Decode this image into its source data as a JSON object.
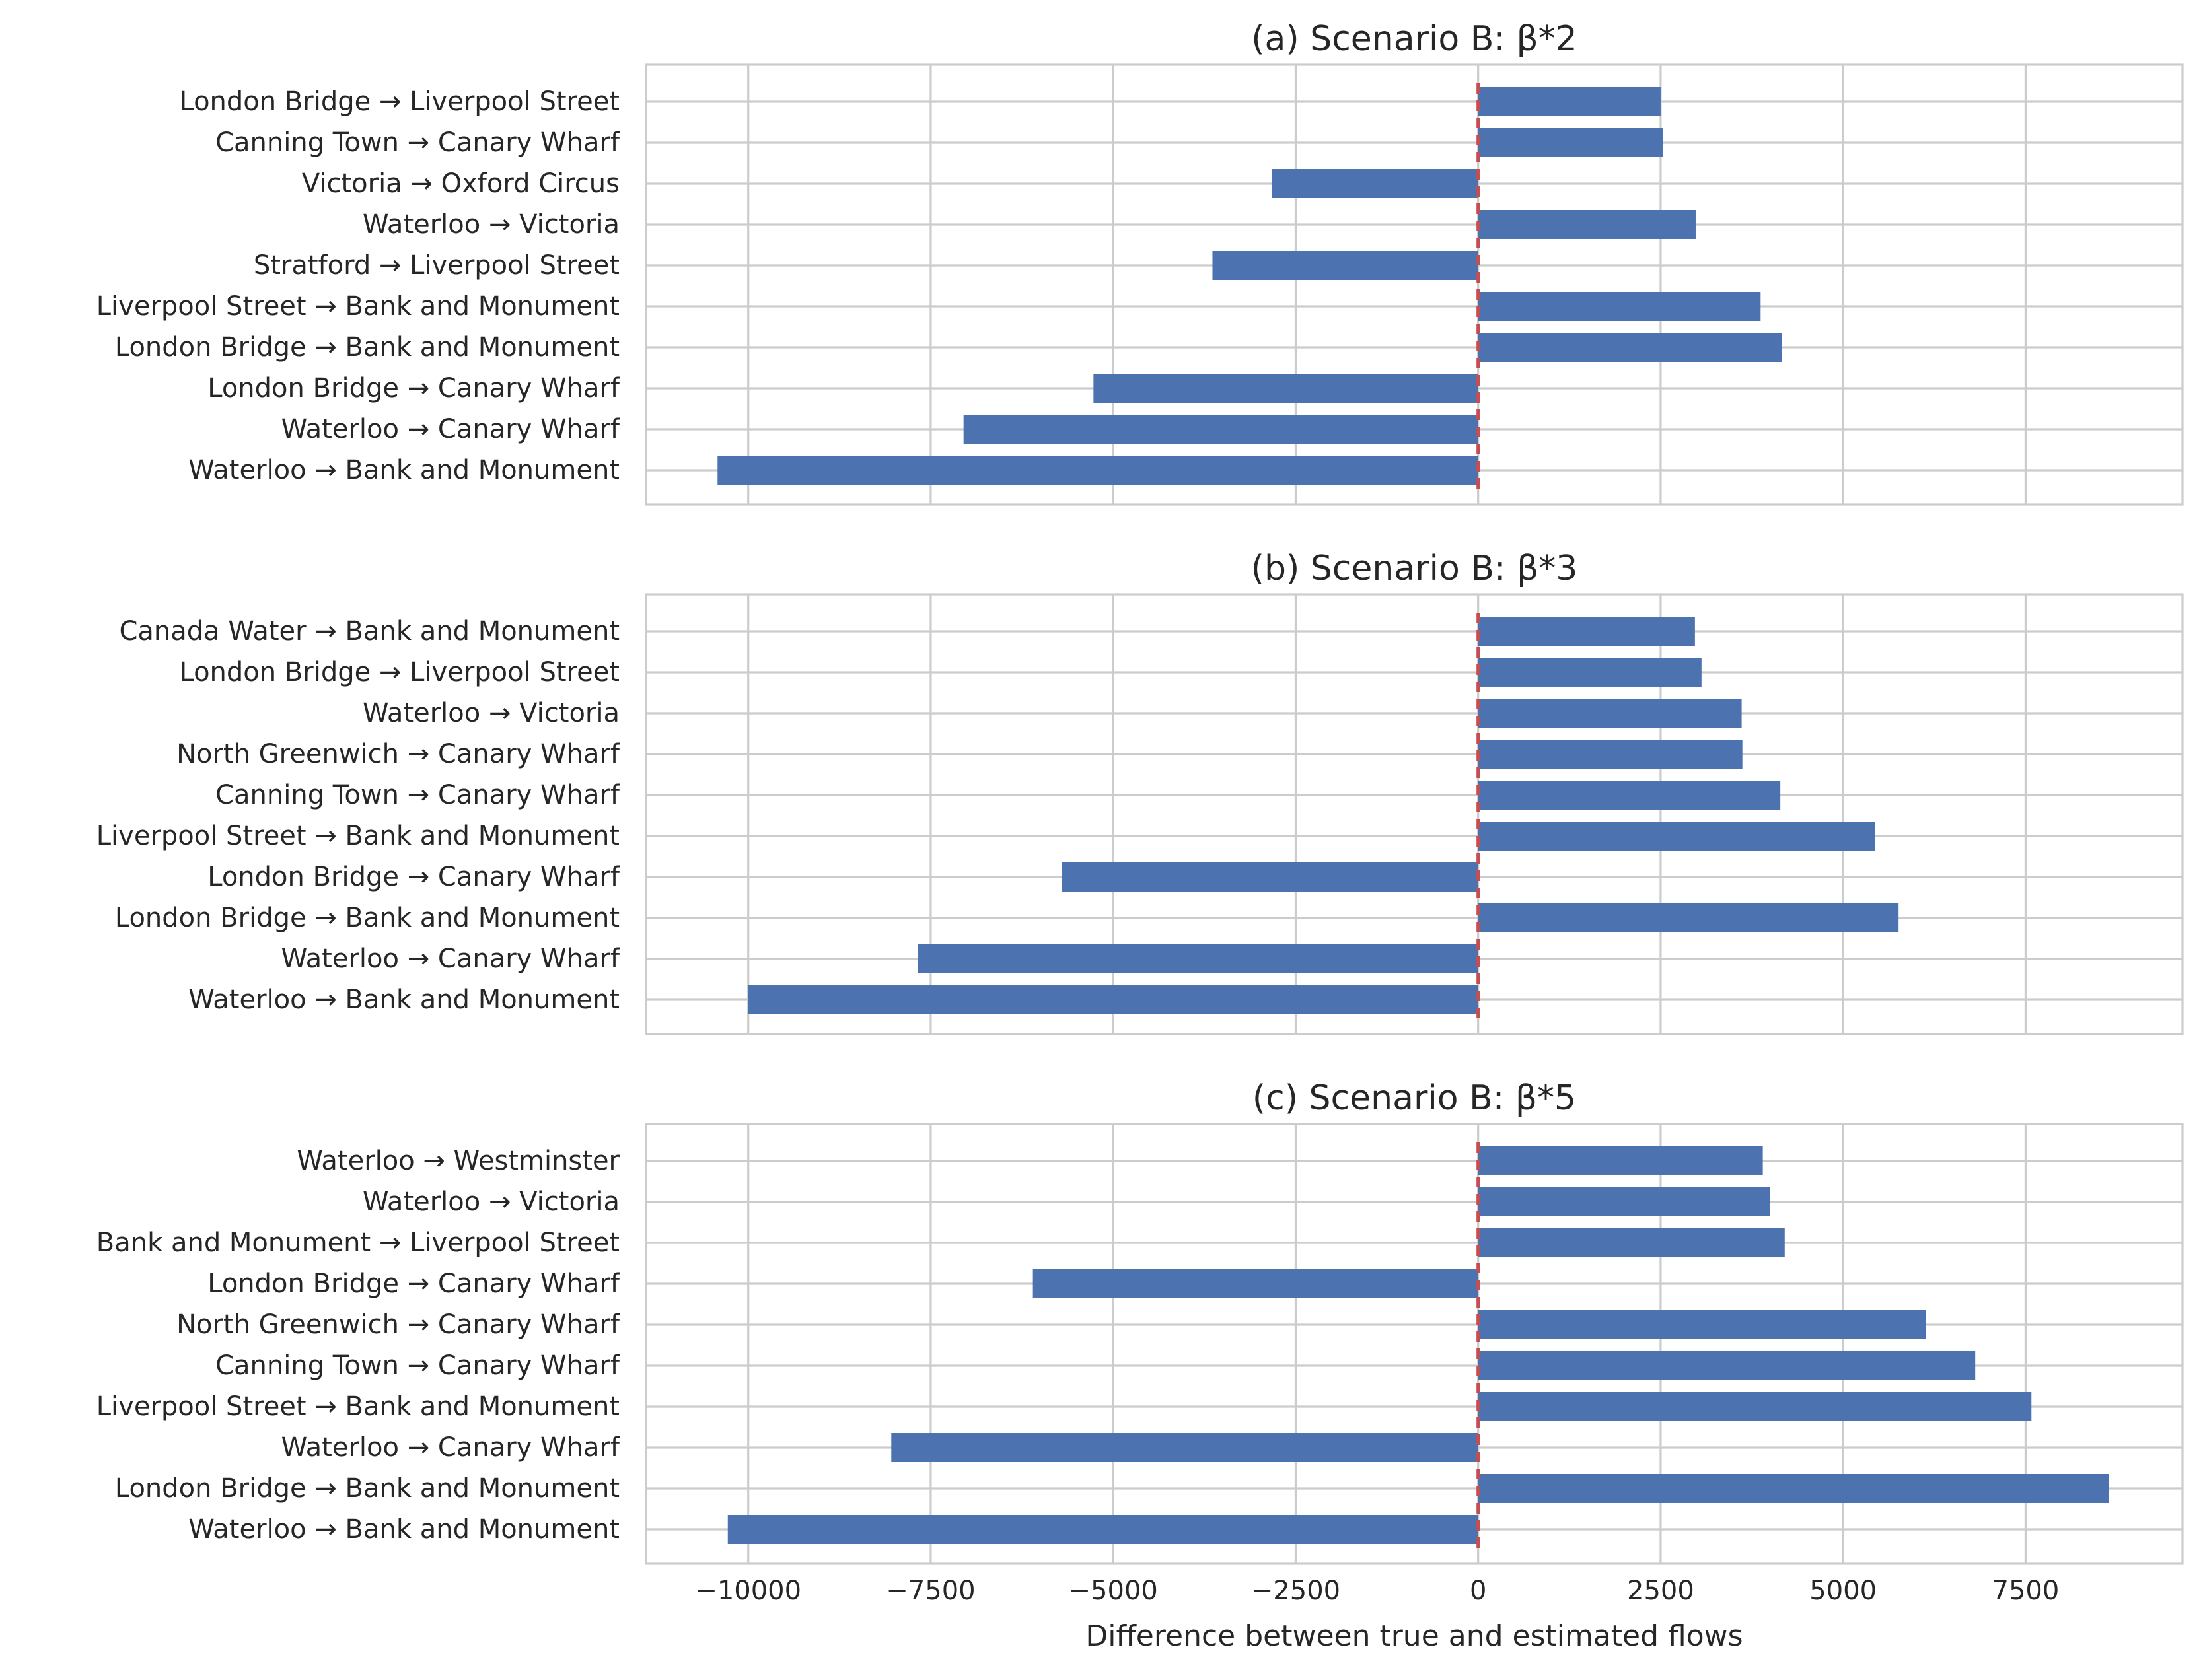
{
  "chart_data": [
    {
      "type": "bar",
      "orientation": "horizontal",
      "title": "(a) Scenario B: β*2",
      "categories": [
        "London Bridge → Liverpool Street",
        "Canning Town → Canary Wharf",
        "Victoria → Oxford Circus",
        "Waterloo → Victoria",
        "Stratford → Liverpool Street",
        "Liverpool Street → Bank and Monument",
        "London Bridge → Bank and Monument",
        "London Bridge → Canary Wharf",
        "Waterloo → Canary Wharf",
        "Waterloo → Bank and Monument"
      ],
      "values": [
        2500,
        2530,
        -2830,
        2980,
        -3640,
        3870,
        4160,
        -5270,
        -7050,
        -10420
      ],
      "xlim": [
        -11400,
        9650
      ],
      "reference_line": 0,
      "grid": true,
      "xlabel": ""
    },
    {
      "type": "bar",
      "orientation": "horizontal",
      "title": "(b) Scenario B: β*3",
      "categories": [
        "Canada Water → Bank and Monument",
        "London Bridge → Liverpool Street",
        "Waterloo → Victoria",
        "North Greenwich → Canary Wharf",
        "Canning Town → Canary Wharf",
        "Liverpool Street → Bank and Monument",
        "London Bridge → Canary Wharf",
        "London Bridge → Bank and Monument",
        "Waterloo → Canary Wharf",
        "Waterloo → Bank and Monument"
      ],
      "values": [
        2970,
        3060,
        3610,
        3620,
        4140,
        5440,
        -5700,
        5760,
        -7680,
        -10000
      ],
      "xlim": [
        -11400,
        9650
      ],
      "reference_line": 0,
      "grid": true,
      "xlabel": ""
    },
    {
      "type": "bar",
      "orientation": "horizontal",
      "title": "(c) Scenario B: β*5",
      "categories": [
        "Waterloo → Westminster",
        "Waterloo → Victoria",
        "Bank and Monument → Liverpool Street",
        "London Bridge → Canary Wharf",
        "North Greenwich → Canary Wharf",
        "Canning Town → Canary Wharf",
        "Liverpool Street → Bank and Monument",
        "Waterloo → Canary Wharf",
        "London Bridge → Bank and Monument",
        "Waterloo → Bank and Monument"
      ],
      "values": [
        3900,
        4000,
        4200,
        -6100,
        6130,
        6810,
        7580,
        -8040,
        8640,
        -10280
      ],
      "xlim": [
        -11400,
        9650
      ],
      "xticks": [
        -10000,
        -7500,
        -5000,
        -2500,
        0,
        2500,
        5000,
        7500
      ],
      "xtick_labels": [
        "−10000",
        "−7500",
        "−5000",
        "−2500",
        "0",
        "2500",
        "5000",
        "7500"
      ],
      "reference_line": 0,
      "grid": true,
      "xlabel": "Difference between true and estimated flows"
    }
  ]
}
